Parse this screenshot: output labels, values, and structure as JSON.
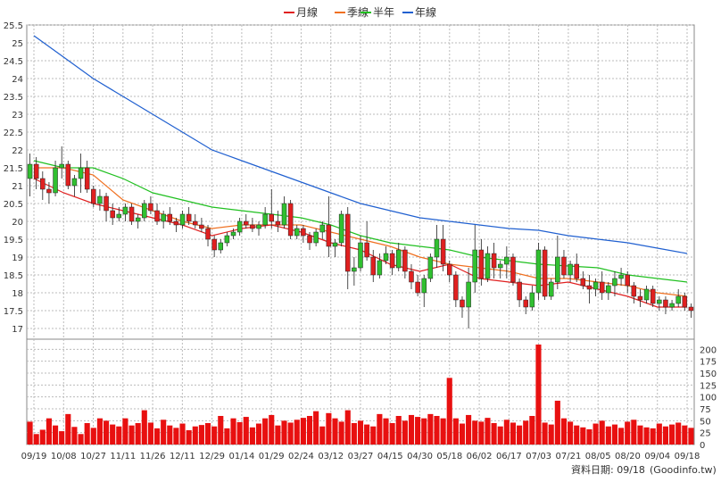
{
  "chart_data": {
    "type": "candlestick",
    "legend": [
      {
        "name": "月線",
        "color": "#e02020"
      },
      {
        "name": "季線",
        "color": "#f07020"
      },
      {
        "name": "半年",
        "color": "#20c020"
      },
      {
        "name": "年線",
        "color": "#2060d0"
      }
    ],
    "price_axis": {
      "min": 16.7,
      "max": 25.5,
      "ticks": [
        17,
        17.5,
        18,
        18.5,
        19,
        19.5,
        20,
        20.5,
        21,
        21.5,
        22,
        22.5,
        23,
        23.5,
        24,
        24.5,
        25,
        25.5
      ]
    },
    "volume_axis": {
      "min": 0,
      "max": 210,
      "ticks": [
        0,
        25,
        50,
        75,
        100,
        125,
        150,
        175,
        200
      ]
    },
    "x_ticks": [
      "09/19",
      "10/08",
      "10/27",
      "11/11",
      "11/26",
      "12/11",
      "12/29",
      "01/14",
      "01/29",
      "02/24",
      "03/12",
      "03/27",
      "04/15",
      "04/30",
      "05/18",
      "06/02",
      "06/17",
      "07/03",
      "07/21",
      "08/05",
      "08/20",
      "09/04",
      "09/18"
    ],
    "series": [
      {
        "name": "年線",
        "values": [
          25.2,
          24.6,
          24.0,
          23.5,
          23.0,
          22.5,
          22.0,
          21.7,
          21.4,
          21.1,
          20.8,
          20.5,
          20.3,
          20.1,
          20.0,
          19.9,
          19.8,
          19.75,
          19.6,
          19.5,
          19.4,
          19.25,
          19.1
        ]
      },
      {
        "name": "半年",
        "values": [
          21.7,
          21.5,
          21.5,
          21.2,
          20.8,
          20.6,
          20.4,
          20.3,
          20.2,
          20.1,
          19.9,
          19.6,
          19.4,
          19.3,
          19.2,
          19.0,
          18.9,
          18.8,
          18.75,
          18.7,
          18.5,
          18.4,
          18.3
        ]
      },
      {
        "name": "季線",
        "values": [
          21.5,
          21.5,
          21.3,
          20.6,
          20.3,
          20.0,
          19.8,
          19.9,
          19.9,
          19.9,
          19.7,
          19.5,
          19.3,
          19.0,
          18.8,
          18.7,
          18.6,
          18.4,
          18.4,
          18.3,
          18.2,
          18.0,
          17.9
        ]
      },
      {
        "name": "月線",
        "values": [
          21.2,
          20.8,
          20.5,
          20.3,
          20.1,
          19.9,
          19.6,
          19.8,
          19.9,
          19.7,
          19.4,
          19.2,
          18.8,
          18.6,
          18.8,
          18.4,
          18.3,
          18.2,
          18.3,
          18.1,
          17.9,
          17.6,
          17.6
        ]
      }
    ],
    "candles": [
      [
        21.2,
        21.9,
        20.7,
        21.6
      ],
      [
        21.6,
        21.8,
        20.9,
        21.2
      ],
      [
        21.2,
        21.4,
        20.6,
        20.9
      ],
      [
        20.9,
        21.1,
        20.5,
        20.8
      ],
      [
        20.8,
        21.7,
        20.7,
        21.5
      ],
      [
        21.5,
        22.1,
        21.2,
        21.6
      ],
      [
        21.6,
        21.7,
        20.9,
        21.0
      ],
      [
        21.0,
        21.3,
        20.7,
        21.2
      ],
      [
        21.2,
        21.9,
        20.8,
        21.5
      ],
      [
        21.5,
        21.7,
        20.8,
        20.9
      ],
      [
        20.9,
        21.0,
        20.4,
        20.5
      ],
      [
        20.5,
        20.9,
        20.3,
        20.7
      ],
      [
        20.7,
        20.8,
        20.0,
        20.3
      ],
      [
        20.3,
        20.5,
        19.9,
        20.1
      ],
      [
        20.1,
        20.4,
        20.0,
        20.2
      ],
      [
        20.2,
        20.5,
        20.0,
        20.4
      ],
      [
        20.4,
        20.5,
        19.9,
        20.0
      ],
      [
        20.0,
        20.2,
        19.8,
        20.1
      ],
      [
        20.1,
        20.6,
        20.0,
        20.5
      ],
      [
        20.5,
        20.7,
        20.2,
        20.3
      ],
      [
        20.3,
        20.5,
        19.9,
        20.0
      ],
      [
        20.0,
        20.3,
        19.8,
        20.2
      ],
      [
        20.2,
        20.4,
        19.9,
        20.0
      ],
      [
        20.0,
        20.1,
        19.7,
        19.9
      ],
      [
        19.9,
        20.3,
        19.8,
        20.2
      ],
      [
        20.2,
        20.4,
        19.9,
        20.0
      ],
      [
        20.0,
        20.2,
        19.8,
        19.9
      ],
      [
        19.9,
        20.1,
        19.7,
        19.8
      ],
      [
        19.8,
        19.9,
        19.3,
        19.5
      ],
      [
        19.5,
        19.6,
        19.0,
        19.2
      ],
      [
        19.2,
        19.5,
        19.1,
        19.4
      ],
      [
        19.4,
        19.7,
        19.3,
        19.6
      ],
      [
        19.6,
        19.8,
        19.5,
        19.7
      ],
      [
        19.7,
        20.1,
        19.6,
        20.0
      ],
      [
        20.0,
        20.2,
        19.8,
        19.9
      ],
      [
        19.9,
        20.1,
        19.7,
        19.8
      ],
      [
        19.8,
        20.0,
        19.6,
        19.9
      ],
      [
        19.9,
        20.4,
        19.8,
        20.2
      ],
      [
        20.2,
        20.9,
        19.8,
        20.0
      ],
      [
        20.0,
        20.3,
        19.7,
        19.9
      ],
      [
        19.9,
        20.7,
        19.8,
        20.5
      ],
      [
        20.5,
        20.6,
        19.5,
        19.6
      ],
      [
        19.6,
        19.9,
        19.5,
        19.8
      ],
      [
        19.8,
        19.9,
        19.4,
        19.6
      ],
      [
        19.6,
        19.7,
        19.2,
        19.4
      ],
      [
        19.4,
        19.8,
        19.3,
        19.7
      ],
      [
        19.7,
        20.0,
        19.5,
        19.9
      ],
      [
        19.9,
        20.7,
        19.0,
        19.3
      ],
      [
        19.3,
        19.5,
        19.0,
        19.4
      ],
      [
        19.4,
        20.3,
        19.3,
        20.2
      ],
      [
        20.2,
        20.4,
        18.1,
        18.6
      ],
      [
        18.6,
        19.0,
        18.2,
        18.7
      ],
      [
        18.7,
        19.6,
        18.6,
        19.4
      ],
      [
        19.4,
        20.0,
        18.9,
        19.0
      ],
      [
        19.0,
        19.2,
        18.3,
        18.5
      ],
      [
        18.5,
        19.1,
        18.4,
        18.9
      ],
      [
        18.9,
        19.3,
        18.8,
        19.1
      ],
      [
        19.1,
        19.2,
        18.5,
        18.7
      ],
      [
        18.7,
        19.4,
        18.6,
        19.2
      ],
      [
        19.2,
        19.3,
        18.4,
        18.6
      ],
      [
        18.6,
        18.8,
        18.1,
        18.3
      ],
      [
        18.3,
        18.5,
        17.9,
        18.0
      ],
      [
        18.0,
        18.5,
        17.6,
        18.4
      ],
      [
        18.4,
        19.1,
        18.3,
        19.0
      ],
      [
        19.0,
        19.9,
        18.7,
        19.5
      ],
      [
        19.5,
        19.9,
        18.6,
        18.8
      ],
      [
        18.8,
        18.9,
        18.3,
        18.5
      ],
      [
        18.5,
        18.6,
        17.6,
        17.8
      ],
      [
        17.8,
        17.9,
        17.3,
        17.6
      ],
      [
        17.6,
        18.7,
        17.0,
        18.3
      ],
      [
        18.3,
        19.9,
        18.0,
        19.2
      ],
      [
        19.2,
        19.5,
        18.2,
        18.4
      ],
      [
        18.4,
        19.3,
        18.3,
        19.1
      ],
      [
        19.1,
        19.4,
        18.4,
        18.7
      ],
      [
        18.7,
        18.9,
        18.4,
        18.8
      ],
      [
        18.8,
        19.3,
        18.4,
        19.0
      ],
      [
        19.0,
        19.1,
        18.2,
        18.3
      ],
      [
        18.3,
        18.4,
        17.6,
        17.8
      ],
      [
        17.8,
        17.9,
        17.4,
        17.6
      ],
      [
        17.6,
        18.2,
        17.5,
        18.0
      ],
      [
        18.0,
        19.4,
        17.8,
        19.2
      ],
      [
        19.2,
        19.3,
        17.8,
        17.9
      ],
      [
        17.9,
        18.4,
        17.8,
        18.3
      ],
      [
        18.3,
        19.6,
        18.1,
        19.0
      ],
      [
        19.0,
        19.2,
        18.4,
        18.5
      ],
      [
        18.5,
        18.9,
        18.3,
        18.8
      ],
      [
        18.8,
        19.1,
        18.3,
        18.4
      ],
      [
        18.4,
        18.6,
        18.1,
        18.2
      ],
      [
        18.2,
        18.5,
        17.7,
        18.1
      ],
      [
        18.1,
        18.4,
        17.9,
        18.3
      ],
      [
        18.3,
        18.6,
        17.8,
        18.0
      ],
      [
        18.0,
        18.3,
        17.8,
        18.2
      ],
      [
        18.2,
        18.6,
        17.9,
        18.4
      ],
      [
        18.4,
        18.7,
        18.2,
        18.5
      ],
      [
        18.5,
        18.6,
        18.0,
        18.2
      ],
      [
        18.2,
        18.3,
        17.7,
        17.9
      ],
      [
        17.9,
        18.1,
        17.6,
        17.8
      ],
      [
        17.8,
        18.2,
        17.7,
        18.1
      ],
      [
        18.1,
        18.2,
        17.6,
        17.7
      ],
      [
        17.7,
        17.9,
        17.5,
        17.8
      ],
      [
        17.8,
        17.9,
        17.4,
        17.6
      ],
      [
        17.6,
        17.8,
        17.5,
        17.7
      ],
      [
        17.7,
        18.1,
        17.6,
        17.9
      ],
      [
        17.9,
        18.0,
        17.5,
        17.6
      ],
      [
        17.6,
        17.7,
        17.3,
        17.5
      ]
    ],
    "volume": [
      48,
      22,
      31,
      55,
      40,
      28,
      64,
      37,
      22,
      45,
      35,
      55,
      50,
      42,
      38,
      55,
      40,
      45,
      72,
      46,
      34,
      52,
      40,
      35,
      44,
      30,
      38,
      41,
      45,
      38,
      60,
      34,
      55,
      47,
      58,
      36,
      44,
      55,
      62,
      40,
      50,
      46,
      52,
      56,
      60,
      70,
      38,
      66,
      55,
      48,
      72,
      45,
      50,
      42,
      38,
      64,
      55,
      45,
      60,
      50,
      62,
      58,
      55,
      64,
      60,
      55,
      140,
      55,
      44,
      62,
      50,
      48,
      56,
      45,
      38,
      52,
      46,
      40,
      50,
      60,
      210,
      46,
      42,
      92,
      55,
      48,
      40,
      36,
      32,
      44,
      50,
      38,
      42,
      35,
      48,
      52,
      40,
      36,
      34,
      44,
      38,
      42,
      46,
      40,
      35
    ],
    "footer_label": "資料日期: 09/18",
    "footer_source": "(Goodinfo.tw)"
  }
}
